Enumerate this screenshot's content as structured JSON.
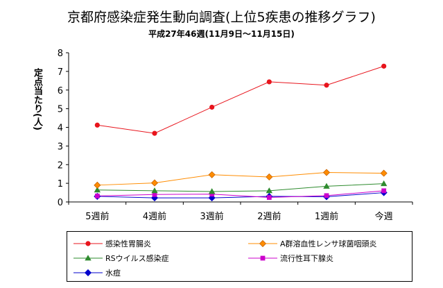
{
  "chart_data": {
    "type": "line",
    "title": "京都府感染症発生動向調査(上位5疾患の推移グラフ)",
    "subtitle": "平成27年46週(11月9日～11月15日)",
    "ylabel": "定点当たり(人)",
    "xlabel": "",
    "categories": [
      "5週前",
      "4週前",
      "3週前",
      "2週前",
      "1週前",
      "今週"
    ],
    "ylim": [
      0,
      8
    ],
    "yticks": [
      0,
      1,
      2,
      3,
      4,
      5,
      6,
      7,
      8
    ],
    "grid": false,
    "legend_position": "bottom",
    "series": [
      {
        "name": "感染性胃腸炎",
        "color": "#e8141c",
        "marker": "circle",
        "values": [
          4.12,
          3.68,
          5.08,
          6.44,
          6.26,
          7.28
        ]
      },
      {
        "name": "A群溶血性レンサ球菌咽頭炎",
        "color": "#ff8c00",
        "marker": "diamond",
        "values": [
          0.9,
          1.02,
          1.46,
          1.34,
          1.58,
          1.54
        ]
      },
      {
        "name": "RSウイルス感染症",
        "color": "#2e8b2e",
        "marker": "triangle",
        "values": [
          0.64,
          0.6,
          0.56,
          0.6,
          0.84,
          0.98
        ]
      },
      {
        "name": "流行性耳下腺炎",
        "color": "#cc00cc",
        "marker": "square",
        "values": [
          0.32,
          0.4,
          0.42,
          0.24,
          0.34,
          0.6
        ]
      },
      {
        "name": "水痘",
        "color": "#0000cc",
        "marker": "diamond",
        "values": [
          0.3,
          0.22,
          0.22,
          0.3,
          0.28,
          0.5
        ]
      }
    ]
  }
}
